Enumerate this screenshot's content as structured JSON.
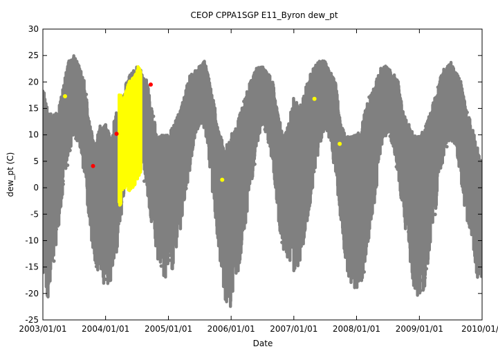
{
  "chart_data": {
    "type": "scatter",
    "title": "CEOP CPPA1SGP E11_Byron  dew_pt",
    "xlabel": "Date",
    "ylabel": "dew_pt (C)",
    "x_range": [
      "2003/01/01",
      "2010/01/01"
    ],
    "ylim": [
      -25,
      30
    ],
    "x_ticks": [
      "2003/01/01",
      "2004/01/01",
      "2005/01/01",
      "2006/01/01",
      "2007/01/01",
      "2008/01/01",
      "2009/01/01",
      "2010/01/01"
    ],
    "y_ticks": [
      "30",
      "25",
      "20",
      "15",
      "10",
      "5",
      "0",
      "-5",
      "-10",
      "-15",
      "-20",
      "-25"
    ],
    "grid": false,
    "colors": {
      "gray": "#808080",
      "yellow": "#ffff00",
      "red": "#ff0000"
    },
    "series": [
      {
        "color": "gray",
        "description_of_envelope": "daily dew point range",
        "envelope": {
          "x": [
            "2003-01-01",
            "2003-02-01",
            "2003-03-01",
            "2003-04-01",
            "2003-05-01",
            "2003-06-01",
            "2003-07-01",
            "2003-08-01",
            "2003-09-01",
            "2003-10-01",
            "2003-11-01",
            "2003-12-01",
            "2004-01-01",
            "2004-02-01",
            "2004-03-01",
            "2004-04-01",
            "2004-05-01",
            "2004-06-01",
            "2004-07-01",
            "2004-08-01",
            "2004-09-01",
            "2004-10-01",
            "2004-11-01",
            "2004-12-01",
            "2005-01-01",
            "2005-02-01",
            "2005-03-01",
            "2005-04-01",
            "2005-05-01",
            "2005-06-01",
            "2005-07-01",
            "2005-08-01",
            "2005-09-01",
            "2005-10-01",
            "2005-11-01",
            "2005-12-01",
            "2006-01-01",
            "2006-02-01",
            "2006-03-01",
            "2006-04-01",
            "2006-05-01",
            "2006-06-01",
            "2006-07-01",
            "2006-08-01",
            "2006-09-01",
            "2006-10-01",
            "2006-11-01",
            "2006-12-01",
            "2007-01-01",
            "2007-02-01",
            "2007-03-01",
            "2007-04-01",
            "2007-05-01",
            "2007-06-01",
            "2007-07-01",
            "2007-08-01",
            "2007-09-01",
            "2007-10-01",
            "2007-11-01",
            "2007-12-01",
            "2008-01-01",
            "2008-02-01",
            "2008-03-01",
            "2008-04-01",
            "2008-05-01",
            "2008-06-01",
            "2008-07-01",
            "2008-08-01",
            "2008-09-01",
            "2008-10-01",
            "2008-11-01",
            "2008-12-01",
            "2009-01-01",
            "2009-02-01",
            "2009-03-01",
            "2009-04-01",
            "2009-05-01",
            "2009-06-01",
            "2009-07-01",
            "2009-08-01",
            "2009-09-01",
            "2009-10-01",
            "2009-11-01",
            "2009-12-01",
            "2010-01-01"
          ],
          "low": [
            -18,
            -21,
            -15,
            -8,
            0,
            6,
            10,
            8,
            2,
            -8,
            -14,
            -17,
            -19,
            -18,
            -14,
            -6,
            2,
            3,
            6,
            4,
            -2,
            -8,
            -14,
            -17,
            -17,
            -15,
            -10,
            -4,
            2,
            9,
            12,
            11,
            3,
            -6,
            -15,
            -22,
            -23,
            -18,
            -12,
            -6,
            1,
            8,
            12,
            9,
            4,
            -6,
            -12,
            -14,
            -16,
            -15,
            -10,
            -5,
            2,
            8,
            11,
            9,
            2,
            -6,
            -15,
            -19,
            -19,
            -18,
            -12,
            -6,
            1,
            9,
            10,
            8,
            2,
            -6,
            -12,
            -21,
            -22,
            -19,
            -12,
            -6,
            2,
            7,
            9,
            8,
            1,
            -6,
            -10,
            -17,
            -17
          ],
          "high": [
            20,
            14,
            14,
            15,
            20,
            24,
            25,
            23,
            20,
            12,
            8,
            12,
            12,
            10,
            14,
            16,
            20,
            22,
            23,
            22,
            20,
            14,
            10,
            10,
            10,
            12,
            14,
            17,
            21,
            22,
            23,
            24,
            20,
            15,
            10,
            8,
            10,
            12,
            15,
            18,
            21,
            23,
            23,
            22,
            20,
            14,
            10,
            12,
            18,
            15,
            18,
            21,
            23,
            24,
            24,
            22,
            20,
            12,
            10,
            10,
            10,
            12,
            16,
            18,
            21,
            23,
            23,
            22,
            20,
            14,
            12,
            10,
            10,
            11,
            14,
            17,
            21,
            23,
            24,
            22,
            20,
            15,
            12,
            8,
            5
          ]
        }
      },
      {
        "color": "yellow",
        "band": {
          "x": [
            "2004-03-20",
            "2004-04-15",
            "2004-05-15",
            "2004-06-15",
            "2004-07-10",
            "2004-07-25"
          ],
          "low": [
            -5,
            0,
            -1,
            0,
            2,
            3
          ],
          "high": [
            18,
            17,
            20,
            21,
            23,
            22
          ]
        },
        "points": [
          {
            "x": "2003-05-10",
            "y": 17.3
          },
          {
            "x": "2005-11-10",
            "y": 1.5
          },
          {
            "x": "2007-05-01",
            "y": 16.8
          },
          {
            "x": "2007-09-25",
            "y": 8.3
          }
        ]
      },
      {
        "color": "red",
        "points": [
          {
            "x": "2003-10-20",
            "y": 4.1
          },
          {
            "x": "2004-03-05",
            "y": 10.2
          },
          {
            "x": "2004-09-20",
            "y": 19.5
          }
        ]
      }
    ]
  }
}
